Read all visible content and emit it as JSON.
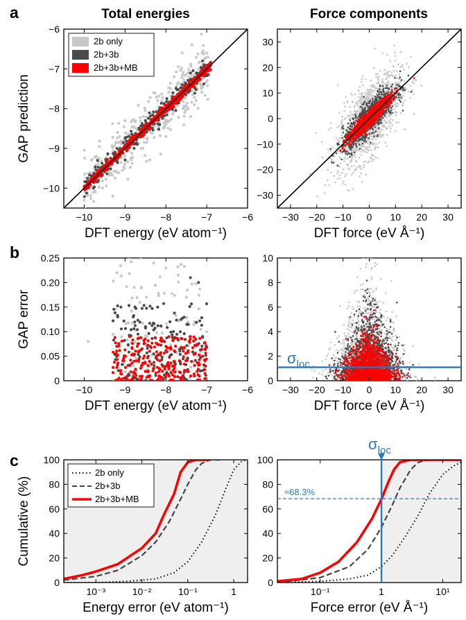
{
  "panel_letters": [
    "a",
    "b",
    "c"
  ],
  "column_titles": [
    "Total energies",
    "Force components"
  ],
  "legend_a": [
    "2b only",
    "2b+3b",
    "2b+3b+MB"
  ],
  "legend_c": [
    "2b only",
    "2b+3b",
    "2b+3b+MB"
  ],
  "sigma_main": "σ",
  "sigma_sub": "loc",
  "annotation_68": "≈68.3%",
  "colors": {
    "2b": "#c8c8c8",
    "3b": "#4a4a4a",
    "mb": "#ff0000",
    "sigma": "#2a78b8",
    "shade": "#efefef"
  },
  "chart_data": [
    {
      "id": "a-energy",
      "type": "scatter",
      "title": "Total energies",
      "xlabel": "DFT energy (eV atom⁻¹)",
      "ylabel": "GAP prediction",
      "xlim": [
        -10.5,
        -6
      ],
      "ylim": [
        -10.5,
        -6
      ],
      "xticks": [
        -10,
        -9,
        -8,
        -7,
        -6
      ],
      "yticks": [
        -10,
        -9,
        -8,
        -7,
        -6
      ],
      "reference_line": "y = x",
      "series": [
        {
          "name": "2b only",
          "x": [
            -10.0,
            -9.7,
            -9.2,
            -9.0,
            -8.6,
            -8.3,
            -8.0,
            -7.6,
            -7.3,
            -7.0,
            -7.8,
            -9.3
          ],
          "y": [
            -10.3,
            -9.2,
            -9.6,
            -8.3,
            -9.0,
            -7.6,
            -8.7,
            -6.6,
            -7.9,
            -6.6,
            -7.2,
            -10.2
          ]
        },
        {
          "name": "2b+3b",
          "x": [
            -9.8,
            -9.2,
            -8.9,
            -8.5,
            -8.1,
            -7.6,
            -7.4,
            -7.1,
            -8.7
          ],
          "y": [
            -9.7,
            -9.0,
            -8.7,
            -8.3,
            -8.2,
            -7.4,
            -7.1,
            -6.8,
            -8.9
          ]
        },
        {
          "name": "2b+3b+MB",
          "x": [
            -10.0,
            -9.5,
            -9.1,
            -8.8,
            -8.4,
            -8.0,
            -7.5,
            -7.2,
            -6.9
          ],
          "y": [
            -10.0,
            -9.5,
            -9.1,
            -8.8,
            -8.4,
            -8.0,
            -7.5,
            -7.2,
            -6.9
          ]
        }
      ]
    },
    {
      "id": "a-force",
      "type": "scatter",
      "title": "Force components",
      "xlabel": "DFT force (eV Å⁻¹)",
      "ylabel": "",
      "xlim": [
        -35,
        35
      ],
      "ylim": [
        -35,
        35
      ],
      "xticks": [
        -30,
        -20,
        -10,
        0,
        10,
        20,
        30
      ],
      "yticks": [
        -30,
        -20,
        -10,
        0,
        10,
        20,
        30
      ],
      "reference_line": "y = x",
      "series": [
        {
          "name": "2b only",
          "x_range": [
            -20,
            20
          ],
          "y_range": [
            -33,
            33
          ]
        },
        {
          "name": "2b+3b",
          "x_range": [
            -15,
            15
          ],
          "y_range": [
            -18,
            18
          ]
        },
        {
          "name": "2b+3b+MB",
          "x_range": [
            -12,
            13
          ],
          "y_range": [
            -12,
            13
          ]
        }
      ]
    },
    {
      "id": "b-energy",
      "type": "scatter",
      "xlabel": "DFT energy (eV atom⁻¹)",
      "ylabel": "GAP error",
      "xlim": [
        -10.5,
        -6
      ],
      "ylim": [
        0,
        0.25
      ],
      "xticks": [
        -10,
        -9,
        -8,
        -7,
        -6
      ],
      "yticks": [
        0,
        0.05,
        0.1,
        0.15,
        0.2,
        0.25
      ],
      "yticklabels": [
        "0",
        "0.05",
        "0.10",
        "0.15",
        "0.20",
        "0.25"
      ],
      "series": [
        {
          "name": "2b only",
          "x": [
            -9.9,
            -9.2,
            -8.9,
            -8.6,
            -8.3,
            -8.0,
            -7.5,
            -7.3,
            -7.0
          ],
          "y": [
            0.08,
            0.22,
            0.25,
            0.19,
            0.24,
            0.23,
            0.17,
            0.12,
            0.1
          ]
        },
        {
          "name": "2b+3b",
          "x": [
            -9.1,
            -8.8,
            -8.5,
            -8.2,
            -7.9,
            -7.4,
            -7.2
          ],
          "y": [
            0.15,
            0.13,
            0.11,
            0.15,
            0.12,
            0.21,
            0.2
          ]
        },
        {
          "name": "2b+3b+MB",
          "x": [
            -9.0,
            -8.7,
            -8.4,
            -8.1,
            -7.8,
            -7.4,
            -7.1
          ],
          "y": [
            0.05,
            0.07,
            0.06,
            0.08,
            0.04,
            0.09,
            0.05
          ]
        }
      ]
    },
    {
      "id": "b-force",
      "type": "scatter",
      "xlabel": "DFT force (eV Å⁻¹)",
      "ylabel": "",
      "xlim": [
        -35,
        35
      ],
      "ylim": [
        0,
        10
      ],
      "xticks": [
        -30,
        -20,
        -10,
        0,
        10,
        20,
        30
      ],
      "yticks": [
        0,
        2,
        4,
        6,
        8,
        10
      ],
      "sigma_loc": 1.1,
      "series": [
        {
          "name": "2b only",
          "x_range": [
            -15,
            15
          ],
          "y_max": 10
        },
        {
          "name": "2b+3b",
          "x_range": [
            -12,
            12
          ],
          "y_max": 8
        },
        {
          "name": "2b+3b+MB",
          "x_range": [
            -12,
            15
          ],
          "y_max": 5
        }
      ]
    },
    {
      "id": "c-energy",
      "type": "line",
      "xscale": "log",
      "xlabel": "Energy error (eV atom⁻¹)",
      "ylabel": "Cumulative (%)",
      "xlim": [
        0.0002,
        2
      ],
      "ylim": [
        0,
        100
      ],
      "xticks": [
        0.001,
        0.01,
        0.1,
        1
      ],
      "xticklabels": [
        "10⁻³",
        "10⁻²",
        "10⁻¹",
        "1"
      ],
      "yticks": [
        0,
        20,
        40,
        60,
        80,
        100
      ],
      "series": [
        {
          "name": "2b only",
          "x": [
            0.0002,
            0.001,
            0.005,
            0.02,
            0.05,
            0.1,
            0.2,
            0.4,
            0.7,
            1.0,
            1.5,
            2.0
          ],
          "y": [
            0,
            0,
            1,
            3,
            8,
            17,
            33,
            55,
            78,
            92,
            99,
            100
          ]
        },
        {
          "name": "2b+3b",
          "x": [
            0.0002,
            0.001,
            0.003,
            0.01,
            0.02,
            0.04,
            0.07,
            0.1,
            0.15,
            0.2,
            0.3,
            0.5
          ],
          "y": [
            2,
            5,
            10,
            22,
            33,
            50,
            68,
            80,
            92,
            97,
            100,
            100
          ]
        },
        {
          "name": "2b+3b+MB",
          "x": [
            0.0002,
            0.0005,
            0.001,
            0.003,
            0.01,
            0.02,
            0.03,
            0.05,
            0.07,
            0.1,
            0.15,
            0.3
          ],
          "y": [
            3,
            6,
            9,
            15,
            28,
            40,
            55,
            72,
            90,
            98,
            100,
            100
          ]
        }
      ]
    },
    {
      "id": "c-force",
      "type": "line",
      "xscale": "log",
      "xlabel": "Force error (eV Å⁻¹)",
      "ylabel": "",
      "xlim": [
        0.02,
        20
      ],
      "ylim": [
        0,
        100
      ],
      "xticks": [
        0.1,
        1,
        10
      ],
      "xticklabels": [
        "10⁻¹",
        "1",
        "10¹"
      ],
      "yticks": [
        0,
        20,
        40,
        60,
        80,
        100
      ],
      "sigma_loc": 1.0,
      "hline_percent": 68.3,
      "series": [
        {
          "name": "2b only",
          "x": [
            0.02,
            0.1,
            0.3,
            0.6,
            1.0,
            1.5,
            2.5,
            4.0,
            6.0,
            10.0,
            15.0,
            20.0
          ],
          "y": [
            0,
            1,
            3,
            6,
            13,
            22,
            38,
            55,
            72,
            88,
            95,
            98
          ]
        },
        {
          "name": "2b+3b",
          "x": [
            0.02,
            0.1,
            0.3,
            0.6,
            1.0,
            1.5,
            2.0,
            3.0,
            4.0,
            6.0,
            10.0,
            20.0
          ],
          "y": [
            0,
            4,
            13,
            27,
            45,
            63,
            77,
            92,
            98,
            100,
            100,
            100
          ]
        },
        {
          "name": "2b+3b+MB",
          "x": [
            0.02,
            0.05,
            0.1,
            0.2,
            0.4,
            0.7,
            1.0,
            1.3,
            1.6,
            2.0,
            3.0,
            20.0
          ],
          "y": [
            1,
            3,
            8,
            17,
            33,
            52,
            68,
            82,
            92,
            98,
            100,
            100
          ]
        }
      ]
    }
  ]
}
